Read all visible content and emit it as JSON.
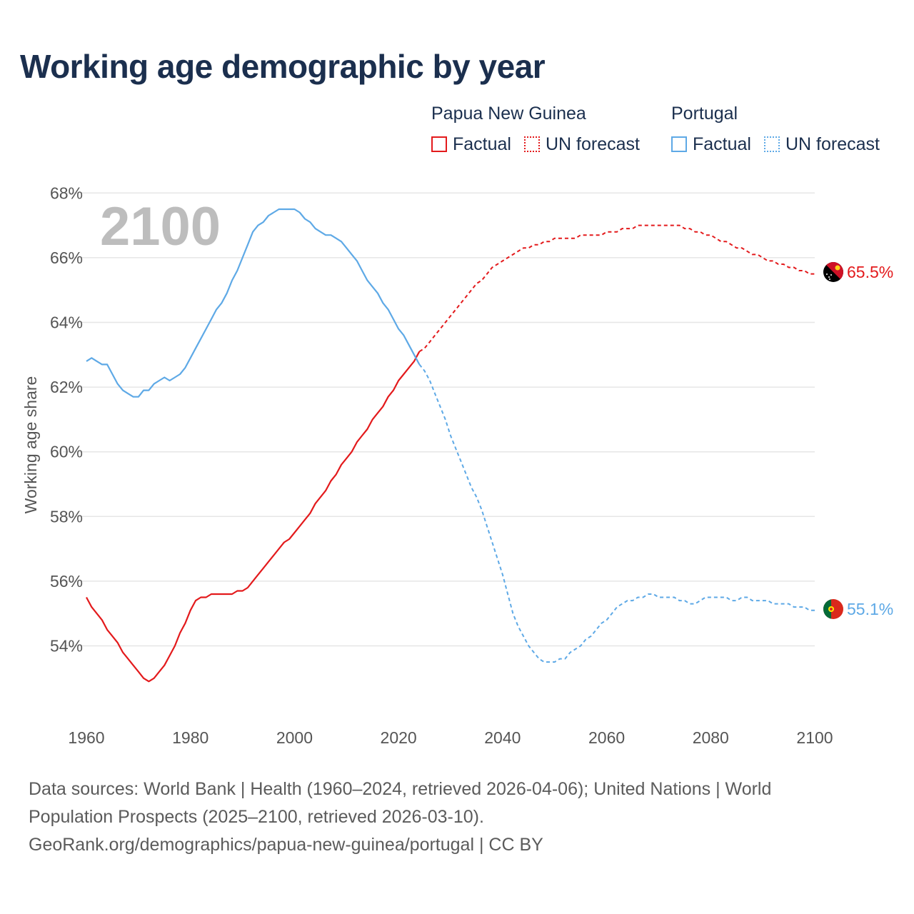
{
  "title": "Working age demographic by year",
  "legend": {
    "groups": [
      {
        "country": "Papua New Guinea",
        "factual_label": "Factual",
        "forecast_label": "UN forecast",
        "color": "#e31a1c"
      },
      {
        "country": "Portugal",
        "factual_label": "Factual",
        "forecast_label": "UN forecast",
        "color": "#5ea9e6"
      }
    ]
  },
  "sources": {
    "line1": "Data sources: World Bank | Health (1960–2024, retrieved 2026-04-06); United Nations | World",
    "line2": "Population Prospects (2025–2100, retrieved 2026-03-10).",
    "line3": "GeoRank.org/demographics/papua-new-guinea/portugal | CC BY"
  },
  "chart_data": {
    "type": "line",
    "title": "Working age demographic by year",
    "ylabel": "Working age share",
    "xlabel": "",
    "year_indicator": "2100",
    "xlim": [
      1960,
      2103
    ],
    "ylim": [
      52,
      68.5
    ],
    "x_ticks": [
      1960,
      1980,
      2000,
      2020,
      2040,
      2060,
      2080,
      2100
    ],
    "y_ticks": [
      54,
      56,
      58,
      60,
      62,
      64,
      66,
      68
    ],
    "y_tick_labels": [
      "54%",
      "56%",
      "58%",
      "60%",
      "62%",
      "64%",
      "66%",
      "68%"
    ],
    "factual_end_year": 2024,
    "series": [
      {
        "name": "Papua New Guinea",
        "color": "#e31a1c",
        "end_label": "65.5%",
        "flag": "papua-new-guinea-flag",
        "points": [
          [
            1960,
            55.5
          ],
          [
            1961,
            55.2
          ],
          [
            1962,
            55.0
          ],
          [
            1963,
            54.8
          ],
          [
            1964,
            54.5
          ],
          [
            1965,
            54.3
          ],
          [
            1966,
            54.1
          ],
          [
            1967,
            53.8
          ],
          [
            1968,
            53.6
          ],
          [
            1969,
            53.4
          ],
          [
            1970,
            53.2
          ],
          [
            1971,
            53.0
          ],
          [
            1972,
            52.9
          ],
          [
            1973,
            53.0
          ],
          [
            1974,
            53.2
          ],
          [
            1975,
            53.4
          ],
          [
            1976,
            53.7
          ],
          [
            1977,
            54.0
          ],
          [
            1978,
            54.4
          ],
          [
            1979,
            54.7
          ],
          [
            1980,
            55.1
          ],
          [
            1981,
            55.4
          ],
          [
            1982,
            55.5
          ],
          [
            1983,
            55.5
          ],
          [
            1984,
            55.6
          ],
          [
            1985,
            55.6
          ],
          [
            1986,
            55.6
          ],
          [
            1987,
            55.6
          ],
          [
            1988,
            55.6
          ],
          [
            1989,
            55.7
          ],
          [
            1990,
            55.7
          ],
          [
            1991,
            55.8
          ],
          [
            1992,
            56.0
          ],
          [
            1993,
            56.2
          ],
          [
            1994,
            56.4
          ],
          [
            1995,
            56.6
          ],
          [
            1996,
            56.8
          ],
          [
            1997,
            57.0
          ],
          [
            1998,
            57.2
          ],
          [
            1999,
            57.3
          ],
          [
            2000,
            57.5
          ],
          [
            2001,
            57.7
          ],
          [
            2002,
            57.9
          ],
          [
            2003,
            58.1
          ],
          [
            2004,
            58.4
          ],
          [
            2005,
            58.6
          ],
          [
            2006,
            58.8
          ],
          [
            2007,
            59.1
          ],
          [
            2008,
            59.3
          ],
          [
            2009,
            59.6
          ],
          [
            2010,
            59.8
          ],
          [
            2011,
            60.0
          ],
          [
            2012,
            60.3
          ],
          [
            2013,
            60.5
          ],
          [
            2014,
            60.7
          ],
          [
            2015,
            61.0
          ],
          [
            2016,
            61.2
          ],
          [
            2017,
            61.4
          ],
          [
            2018,
            61.7
          ],
          [
            2019,
            61.9
          ],
          [
            2020,
            62.2
          ],
          [
            2021,
            62.4
          ],
          [
            2022,
            62.6
          ],
          [
            2023,
            62.8
          ],
          [
            2024,
            63.1
          ],
          [
            2025,
            63.2
          ],
          [
            2026,
            63.4
          ],
          [
            2027,
            63.6
          ],
          [
            2028,
            63.8
          ],
          [
            2029,
            64.0
          ],
          [
            2030,
            64.2
          ],
          [
            2031,
            64.4
          ],
          [
            2032,
            64.6
          ],
          [
            2033,
            64.8
          ],
          [
            2034,
            65.0
          ],
          [
            2035,
            65.2
          ],
          [
            2036,
            65.3
          ],
          [
            2037,
            65.5
          ],
          [
            2038,
            65.7
          ],
          [
            2039,
            65.8
          ],
          [
            2040,
            65.9
          ],
          [
            2041,
            66.0
          ],
          [
            2042,
            66.1
          ],
          [
            2043,
            66.2
          ],
          [
            2044,
            66.3
          ],
          [
            2045,
            66.3
          ],
          [
            2046,
            66.4
          ],
          [
            2047,
            66.4
          ],
          [
            2048,
            66.5
          ],
          [
            2049,
            66.5
          ],
          [
            2050,
            66.6
          ],
          [
            2051,
            66.6
          ],
          [
            2052,
            66.6
          ],
          [
            2053,
            66.6
          ],
          [
            2054,
            66.6
          ],
          [
            2055,
            66.7
          ],
          [
            2056,
            66.7
          ],
          [
            2057,
            66.7
          ],
          [
            2058,
            66.7
          ],
          [
            2059,
            66.7
          ],
          [
            2060,
            66.8
          ],
          [
            2061,
            66.8
          ],
          [
            2062,
            66.8
          ],
          [
            2063,
            66.9
          ],
          [
            2064,
            66.9
          ],
          [
            2065,
            66.9
          ],
          [
            2066,
            67.0
          ],
          [
            2067,
            67.0
          ],
          [
            2068,
            67.0
          ],
          [
            2069,
            67.0
          ],
          [
            2070,
            67.0
          ],
          [
            2071,
            67.0
          ],
          [
            2072,
            67.0
          ],
          [
            2073,
            67.0
          ],
          [
            2074,
            67.0
          ],
          [
            2075,
            66.9
          ],
          [
            2076,
            66.9
          ],
          [
            2077,
            66.8
          ],
          [
            2078,
            66.8
          ],
          [
            2079,
            66.7
          ],
          [
            2080,
            66.7
          ],
          [
            2081,
            66.6
          ],
          [
            2082,
            66.5
          ],
          [
            2083,
            66.5
          ],
          [
            2084,
            66.4
          ],
          [
            2085,
            66.3
          ],
          [
            2086,
            66.3
          ],
          [
            2087,
            66.2
          ],
          [
            2088,
            66.1
          ],
          [
            2089,
            66.1
          ],
          [
            2090,
            66.0
          ],
          [
            2091,
            65.9
          ],
          [
            2092,
            65.9
          ],
          [
            2093,
            65.8
          ],
          [
            2094,
            65.8
          ],
          [
            2095,
            65.7
          ],
          [
            2096,
            65.7
          ],
          [
            2097,
            65.6
          ],
          [
            2098,
            65.6
          ],
          [
            2099,
            65.5
          ],
          [
            2100,
            65.5
          ]
        ]
      },
      {
        "name": "Portugal",
        "color": "#5ea9e6",
        "end_label": "55.1%",
        "flag": "portugal-flag",
        "points": [
          [
            1960,
            62.8
          ],
          [
            1961,
            62.9
          ],
          [
            1962,
            62.8
          ],
          [
            1963,
            62.7
          ],
          [
            1964,
            62.7
          ],
          [
            1965,
            62.4
          ],
          [
            1966,
            62.1
          ],
          [
            1967,
            61.9
          ],
          [
            1968,
            61.8
          ],
          [
            1969,
            61.7
          ],
          [
            1970,
            61.7
          ],
          [
            1971,
            61.9
          ],
          [
            1972,
            61.9
          ],
          [
            1973,
            62.1
          ],
          [
            1974,
            62.2
          ],
          [
            1975,
            62.3
          ],
          [
            1976,
            62.2
          ],
          [
            1977,
            62.3
          ],
          [
            1978,
            62.4
          ],
          [
            1979,
            62.6
          ],
          [
            1980,
            62.9
          ],
          [
            1981,
            63.2
          ],
          [
            1982,
            63.5
          ],
          [
            1983,
            63.8
          ],
          [
            1984,
            64.1
          ],
          [
            1985,
            64.4
          ],
          [
            1986,
            64.6
          ],
          [
            1987,
            64.9
          ],
          [
            1988,
            65.3
          ],
          [
            1989,
            65.6
          ],
          [
            1990,
            66.0
          ],
          [
            1991,
            66.4
          ],
          [
            1992,
            66.8
          ],
          [
            1993,
            67.0
          ],
          [
            1994,
            67.1
          ],
          [
            1995,
            67.3
          ],
          [
            1996,
            67.4
          ],
          [
            1997,
            67.5
          ],
          [
            1998,
            67.5
          ],
          [
            1999,
            67.5
          ],
          [
            2000,
            67.5
          ],
          [
            2001,
            67.4
          ],
          [
            2002,
            67.2
          ],
          [
            2003,
            67.1
          ],
          [
            2004,
            66.9
          ],
          [
            2005,
            66.8
          ],
          [
            2006,
            66.7
          ],
          [
            2007,
            66.7
          ],
          [
            2008,
            66.6
          ],
          [
            2009,
            66.5
          ],
          [
            2010,
            66.3
          ],
          [
            2011,
            66.1
          ],
          [
            2012,
            65.9
          ],
          [
            2013,
            65.6
          ],
          [
            2014,
            65.3
          ],
          [
            2015,
            65.1
          ],
          [
            2016,
            64.9
          ],
          [
            2017,
            64.6
          ],
          [
            2018,
            64.4
          ],
          [
            2019,
            64.1
          ],
          [
            2020,
            63.8
          ],
          [
            2021,
            63.6
          ],
          [
            2022,
            63.3
          ],
          [
            2023,
            63.0
          ],
          [
            2024,
            62.7
          ],
          [
            2025,
            62.5
          ],
          [
            2026,
            62.2
          ],
          [
            2027,
            61.8
          ],
          [
            2028,
            61.4
          ],
          [
            2029,
            61.0
          ],
          [
            2030,
            60.5
          ],
          [
            2031,
            60.1
          ],
          [
            2032,
            59.7
          ],
          [
            2033,
            59.3
          ],
          [
            2034,
            58.9
          ],
          [
            2035,
            58.6
          ],
          [
            2036,
            58.2
          ],
          [
            2037,
            57.7
          ],
          [
            2038,
            57.2
          ],
          [
            2039,
            56.7
          ],
          [
            2040,
            56.2
          ],
          [
            2041,
            55.6
          ],
          [
            2042,
            55.0
          ],
          [
            2043,
            54.6
          ],
          [
            2044,
            54.3
          ],
          [
            2045,
            54.0
          ],
          [
            2046,
            53.8
          ],
          [
            2047,
            53.6
          ],
          [
            2048,
            53.5
          ],
          [
            2049,
            53.5
          ],
          [
            2050,
            53.5
          ],
          [
            2051,
            53.6
          ],
          [
            2052,
            53.6
          ],
          [
            2053,
            53.8
          ],
          [
            2054,
            53.9
          ],
          [
            2055,
            54.0
          ],
          [
            2056,
            54.2
          ],
          [
            2057,
            54.3
          ],
          [
            2058,
            54.5
          ],
          [
            2059,
            54.7
          ],
          [
            2060,
            54.8
          ],
          [
            2061,
            55.0
          ],
          [
            2062,
            55.2
          ],
          [
            2063,
            55.3
          ],
          [
            2064,
            55.4
          ],
          [
            2065,
            55.4
          ],
          [
            2066,
            55.5
          ],
          [
            2067,
            55.5
          ],
          [
            2068,
            55.6
          ],
          [
            2069,
            55.6
          ],
          [
            2070,
            55.5
          ],
          [
            2071,
            55.5
          ],
          [
            2072,
            55.5
          ],
          [
            2073,
            55.5
          ],
          [
            2074,
            55.4
          ],
          [
            2075,
            55.4
          ],
          [
            2076,
            55.3
          ],
          [
            2077,
            55.3
          ],
          [
            2078,
            55.4
          ],
          [
            2079,
            55.5
          ],
          [
            2080,
            55.5
          ],
          [
            2081,
            55.5
          ],
          [
            2082,
            55.5
          ],
          [
            2083,
            55.5
          ],
          [
            2084,
            55.4
          ],
          [
            2085,
            55.4
          ],
          [
            2086,
            55.5
          ],
          [
            2087,
            55.5
          ],
          [
            2088,
            55.4
          ],
          [
            2089,
            55.4
          ],
          [
            2090,
            55.4
          ],
          [
            2091,
            55.4
          ],
          [
            2092,
            55.3
          ],
          [
            2093,
            55.3
          ],
          [
            2094,
            55.3
          ],
          [
            2095,
            55.3
          ],
          [
            2096,
            55.2
          ],
          [
            2097,
            55.2
          ],
          [
            2098,
            55.2
          ],
          [
            2099,
            55.1
          ],
          [
            2100,
            55.1
          ]
        ]
      }
    ]
  }
}
